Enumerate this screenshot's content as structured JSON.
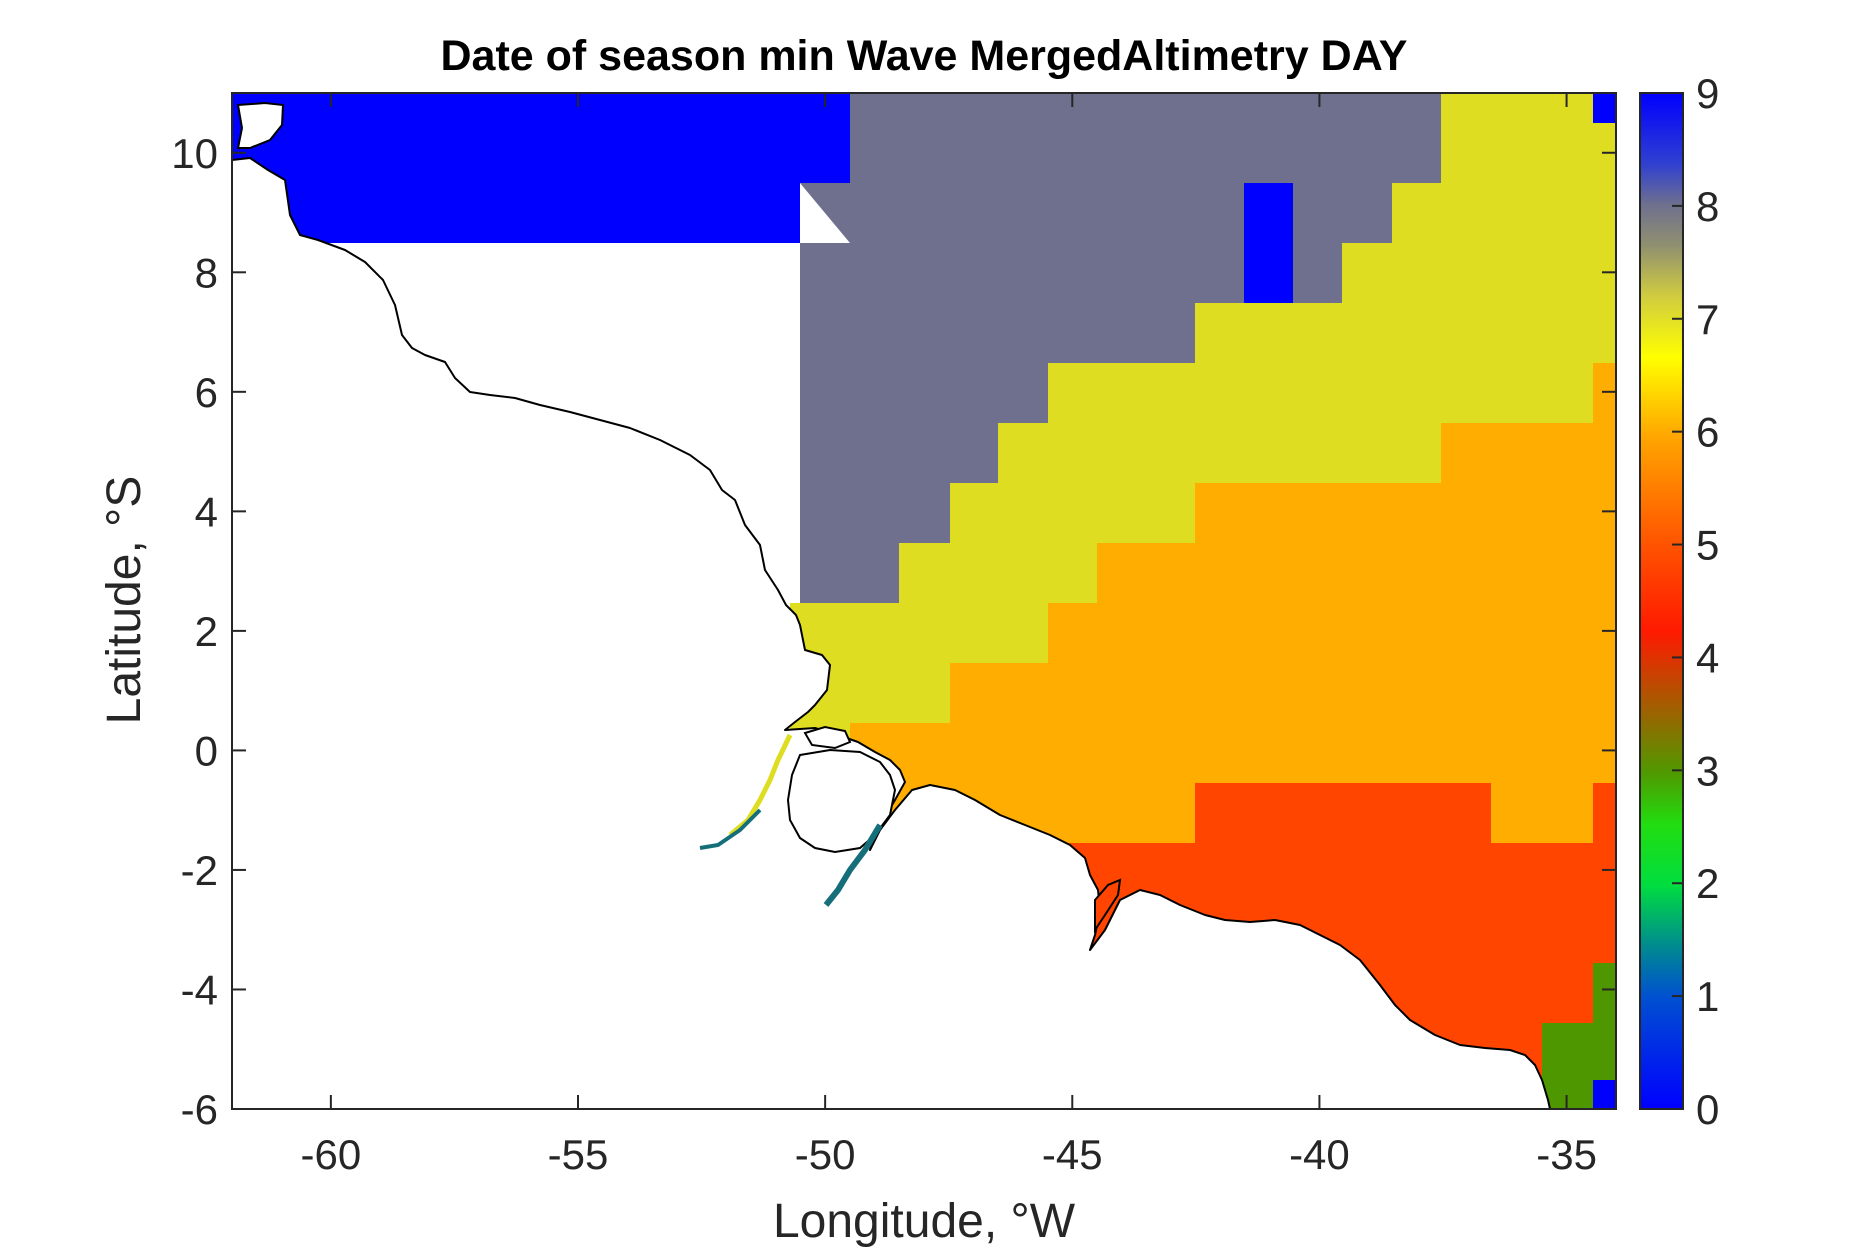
{
  "chart_data": {
    "type": "heatmap",
    "title": "Date of season min Wave MergedAltimetry DAY",
    "xlabel": "Longitude, °W",
    "ylabel": "Latitude, °S",
    "xlim": [
      -62,
      -34
    ],
    "ylim": [
      -6,
      11
    ],
    "x_ticks": [
      -60,
      -55,
      -50,
      -45,
      -40,
      -35
    ],
    "y_ticks": [
      -6,
      -4,
      -2,
      0,
      2,
      4,
      6,
      8,
      10
    ],
    "colorbar": {
      "min": 0,
      "max": 9,
      "ticks": [
        0,
        1,
        2,
        3,
        4,
        5,
        6,
        7,
        8,
        9
      ]
    },
    "colors": {
      "value_9": "#0000ff",
      "value_8": "#6e708e",
      "value_7": "#dedd22",
      "value_6": "#ffad00",
      "value_5": "#ff4500",
      "value_3": "#4f9700",
      "land": "#ffffff",
      "coastline": "#000000"
    },
    "grid": false,
    "regions": [
      {
        "value": 9,
        "area": "northwest offshore, north of ~8.5°S, west of ~-49.5°W"
      },
      {
        "value": 8,
        "area": "north-central offshore band"
      },
      {
        "value": 9,
        "area": "small patch near -41°W, 8–9.5°S"
      },
      {
        "value": 7,
        "area": "diagonal band from the river mouth to the northeast"
      },
      {
        "value": 6,
        "area": "central to eastern region, -1 to 6°S"
      },
      {
        "value": 5,
        "area": "southeastern coastal region"
      },
      {
        "value": 3,
        "area": "southeast corner near -35°W, -6 to -3.5°S"
      },
      {
        "value": 9,
        "area": "single cells at -34.5°W near 10.5°S and -5.5°S"
      }
    ]
  }
}
